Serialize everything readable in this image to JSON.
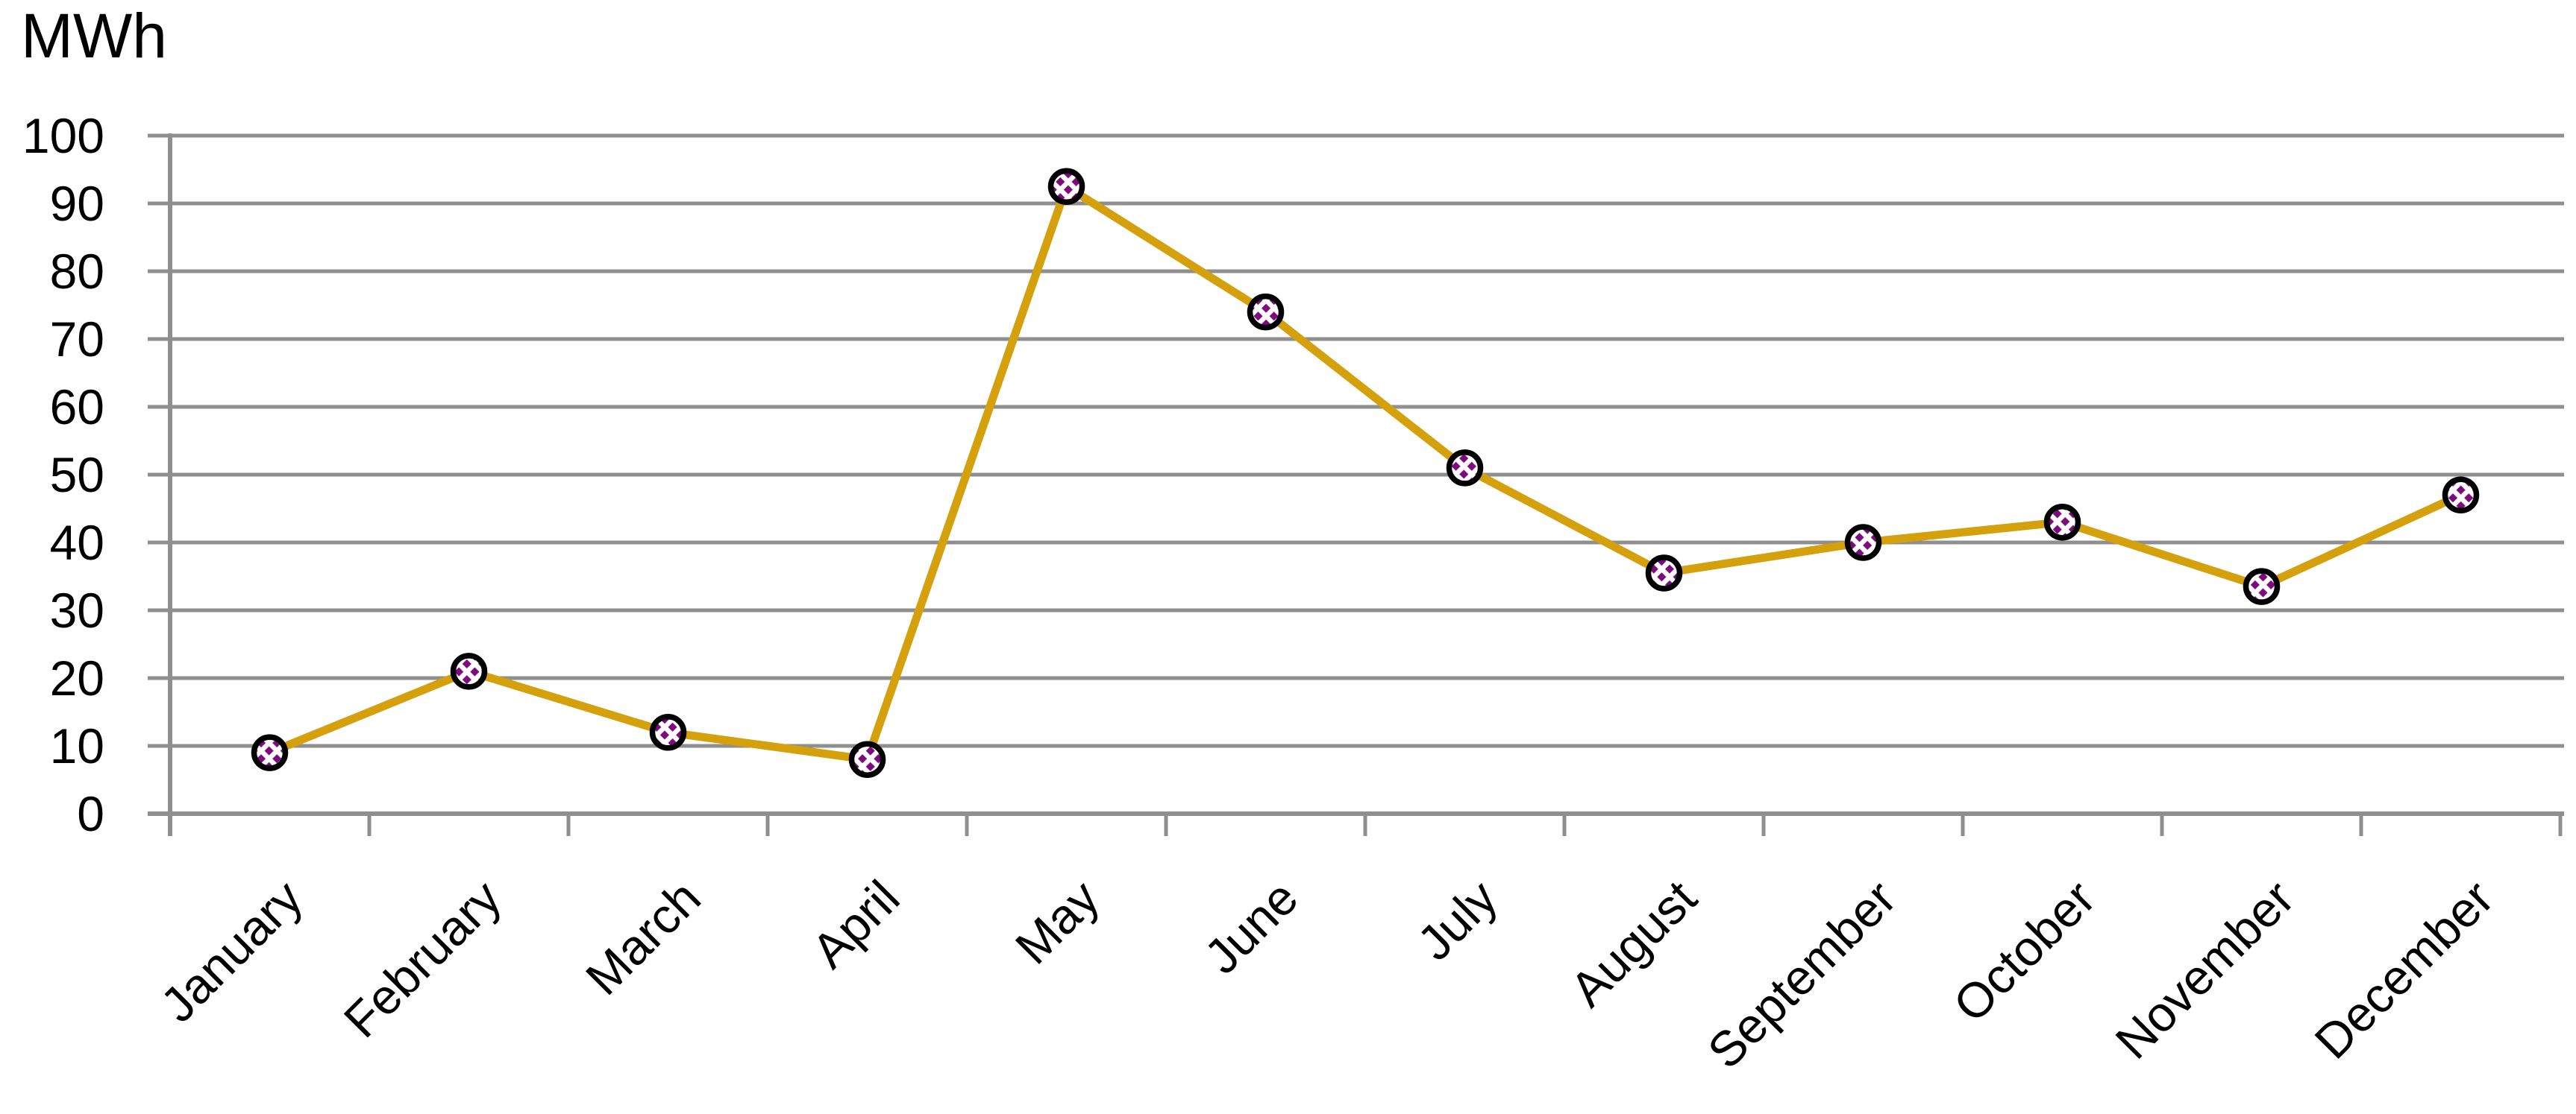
{
  "chart_data": {
    "type": "line",
    "title": "",
    "ylabel": "MWh",
    "xlabel": "",
    "categories": [
      "January",
      "February",
      "March",
      "April",
      "May",
      "June",
      "July",
      "August",
      "September",
      "October",
      "November",
      "December"
    ],
    "series": [
      {
        "name": "MWh",
        "values": [
          9,
          21,
          12,
          8,
          92.5,
          74,
          51,
          35.5,
          40,
          43,
          33.5,
          47
        ]
      }
    ],
    "ylim": [
      0,
      100
    ],
    "yticks": [
      0,
      10,
      20,
      30,
      40,
      50,
      60,
      70,
      80,
      90,
      100
    ],
    "grid": "horizontal",
    "legend": "none",
    "x_label_rotation_deg": -45,
    "styles": {
      "line_color": "#D4A00C",
      "marker_ring_color": "#000000",
      "marker_fill_color": "#FFFFFF",
      "marker_pattern_color": "#7D0A7D",
      "grid_color": "#8F8F8F",
      "text_color": "#000000",
      "background_color": "#FFFFFF"
    }
  }
}
